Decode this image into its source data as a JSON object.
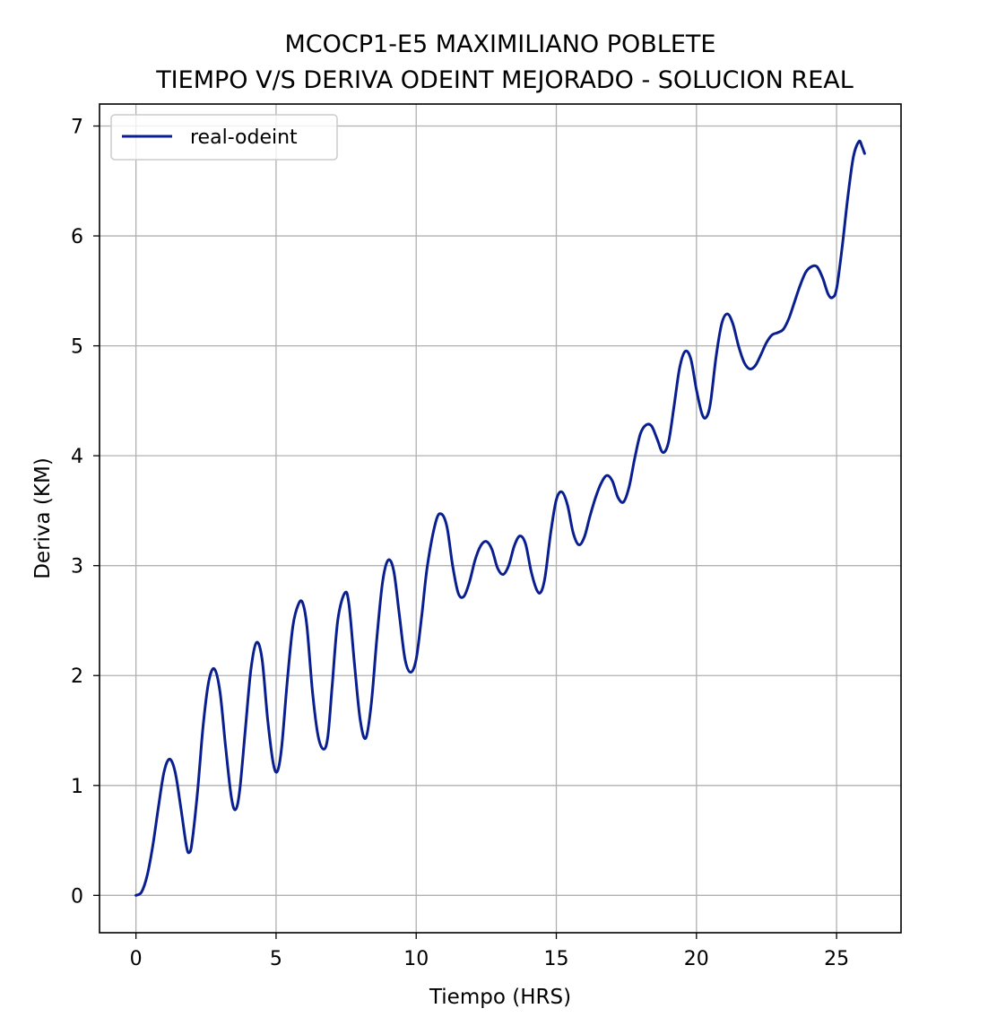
{
  "chart_data": {
    "type": "line",
    "title": [
      "MCOCP1-E5 MAXIMILIANO POBLETE",
      "TIEMPO V/S DERIVA ODEINT MEJORADO - SOLUCION REAL"
    ],
    "xlabel": "Tiempo (HRS)",
    "ylabel": "Deriva (KM)",
    "xlim": [
      -1.3,
      27.3
    ],
    "ylim": [
      -0.34,
      7.2
    ],
    "xticks": [
      0,
      5,
      10,
      15,
      20,
      25
    ],
    "yticks": [
      0,
      1,
      2,
      3,
      4,
      5,
      6,
      7
    ],
    "grid": true,
    "legend_position": "top-left",
    "series": [
      {
        "name": "real-odeint",
        "color": "#0a1f8f",
        "points": [
          [
            0,
            0.0
          ],
          [
            0.2,
            0.03
          ],
          [
            0.4,
            0.18
          ],
          [
            0.6,
            0.45
          ],
          [
            0.8,
            0.8
          ],
          [
            1.0,
            1.12
          ],
          [
            1.2,
            1.24
          ],
          [
            1.4,
            1.12
          ],
          [
            1.6,
            0.8
          ],
          [
            1.8,
            0.45
          ],
          [
            1.9,
            0.39
          ],
          [
            2.0,
            0.48
          ],
          [
            2.2,
            0.95
          ],
          [
            2.4,
            1.55
          ],
          [
            2.6,
            1.95
          ],
          [
            2.8,
            2.06
          ],
          [
            3.0,
            1.85
          ],
          [
            3.2,
            1.35
          ],
          [
            3.4,
            0.9
          ],
          [
            3.55,
            0.78
          ],
          [
            3.7,
            0.95
          ],
          [
            3.9,
            1.5
          ],
          [
            4.1,
            2.05
          ],
          [
            4.3,
            2.3
          ],
          [
            4.5,
            2.15
          ],
          [
            4.7,
            1.6
          ],
          [
            4.9,
            1.2
          ],
          [
            5.05,
            1.13
          ],
          [
            5.2,
            1.35
          ],
          [
            5.4,
            1.95
          ],
          [
            5.6,
            2.45
          ],
          [
            5.8,
            2.65
          ],
          [
            5.95,
            2.66
          ],
          [
            6.1,
            2.45
          ],
          [
            6.3,
            1.85
          ],
          [
            6.5,
            1.45
          ],
          [
            6.7,
            1.33
          ],
          [
            6.85,
            1.45
          ],
          [
            7.0,
            1.9
          ],
          [
            7.2,
            2.5
          ],
          [
            7.45,
            2.75
          ],
          [
            7.6,
            2.65
          ],
          [
            7.8,
            2.1
          ],
          [
            8.0,
            1.6
          ],
          [
            8.2,
            1.43
          ],
          [
            8.4,
            1.75
          ],
          [
            8.6,
            2.35
          ],
          [
            8.8,
            2.85
          ],
          [
            9.0,
            3.05
          ],
          [
            9.2,
            2.95
          ],
          [
            9.4,
            2.55
          ],
          [
            9.6,
            2.15
          ],
          [
            9.8,
            2.03
          ],
          [
            10.0,
            2.15
          ],
          [
            10.2,
            2.55
          ],
          [
            10.4,
            3.0
          ],
          [
            10.7,
            3.4
          ],
          [
            10.9,
            3.47
          ],
          [
            11.1,
            3.35
          ],
          [
            11.3,
            3.0
          ],
          [
            11.5,
            2.75
          ],
          [
            11.7,
            2.72
          ],
          [
            11.9,
            2.85
          ],
          [
            12.1,
            3.05
          ],
          [
            12.3,
            3.18
          ],
          [
            12.5,
            3.22
          ],
          [
            12.7,
            3.15
          ],
          [
            12.9,
            2.98
          ],
          [
            13.1,
            2.92
          ],
          [
            13.3,
            3.0
          ],
          [
            13.5,
            3.18
          ],
          [
            13.7,
            3.27
          ],
          [
            13.9,
            3.2
          ],
          [
            14.1,
            2.95
          ],
          [
            14.3,
            2.78
          ],
          [
            14.45,
            2.76
          ],
          [
            14.6,
            2.9
          ],
          [
            14.8,
            3.3
          ],
          [
            15.0,
            3.6
          ],
          [
            15.2,
            3.67
          ],
          [
            15.4,
            3.55
          ],
          [
            15.6,
            3.3
          ],
          [
            15.8,
            3.19
          ],
          [
            16.0,
            3.26
          ],
          [
            16.2,
            3.45
          ],
          [
            16.4,
            3.62
          ],
          [
            16.6,
            3.75
          ],
          [
            16.8,
            3.82
          ],
          [
            17.0,
            3.77
          ],
          [
            17.2,
            3.62
          ],
          [
            17.4,
            3.58
          ],
          [
            17.6,
            3.72
          ],
          [
            17.8,
            3.98
          ],
          [
            18.0,
            4.2
          ],
          [
            18.2,
            4.28
          ],
          [
            18.4,
            4.27
          ],
          [
            18.6,
            4.15
          ],
          [
            18.8,
            4.03
          ],
          [
            19.0,
            4.12
          ],
          [
            19.2,
            4.45
          ],
          [
            19.4,
            4.8
          ],
          [
            19.6,
            4.95
          ],
          [
            19.8,
            4.88
          ],
          [
            20.0,
            4.6
          ],
          [
            20.2,
            4.38
          ],
          [
            20.35,
            4.35
          ],
          [
            20.5,
            4.48
          ],
          [
            20.7,
            4.9
          ],
          [
            20.9,
            5.2
          ],
          [
            21.1,
            5.29
          ],
          [
            21.3,
            5.2
          ],
          [
            21.5,
            5.0
          ],
          [
            21.7,
            4.85
          ],
          [
            21.9,
            4.79
          ],
          [
            22.1,
            4.82
          ],
          [
            22.3,
            4.92
          ],
          [
            22.5,
            5.03
          ],
          [
            22.7,
            5.1
          ],
          [
            22.9,
            5.12
          ],
          [
            23.1,
            5.15
          ],
          [
            23.3,
            5.25
          ],
          [
            23.5,
            5.4
          ],
          [
            23.7,
            5.55
          ],
          [
            23.9,
            5.67
          ],
          [
            24.1,
            5.72
          ],
          [
            24.3,
            5.72
          ],
          [
            24.5,
            5.62
          ],
          [
            24.7,
            5.47
          ],
          [
            24.85,
            5.44
          ],
          [
            25.0,
            5.52
          ],
          [
            25.2,
            5.9
          ],
          [
            25.4,
            6.35
          ],
          [
            25.6,
            6.72
          ],
          [
            25.8,
            6.86
          ],
          [
            25.9,
            6.82
          ],
          [
            26.0,
            6.75
          ]
        ]
      }
    ]
  }
}
